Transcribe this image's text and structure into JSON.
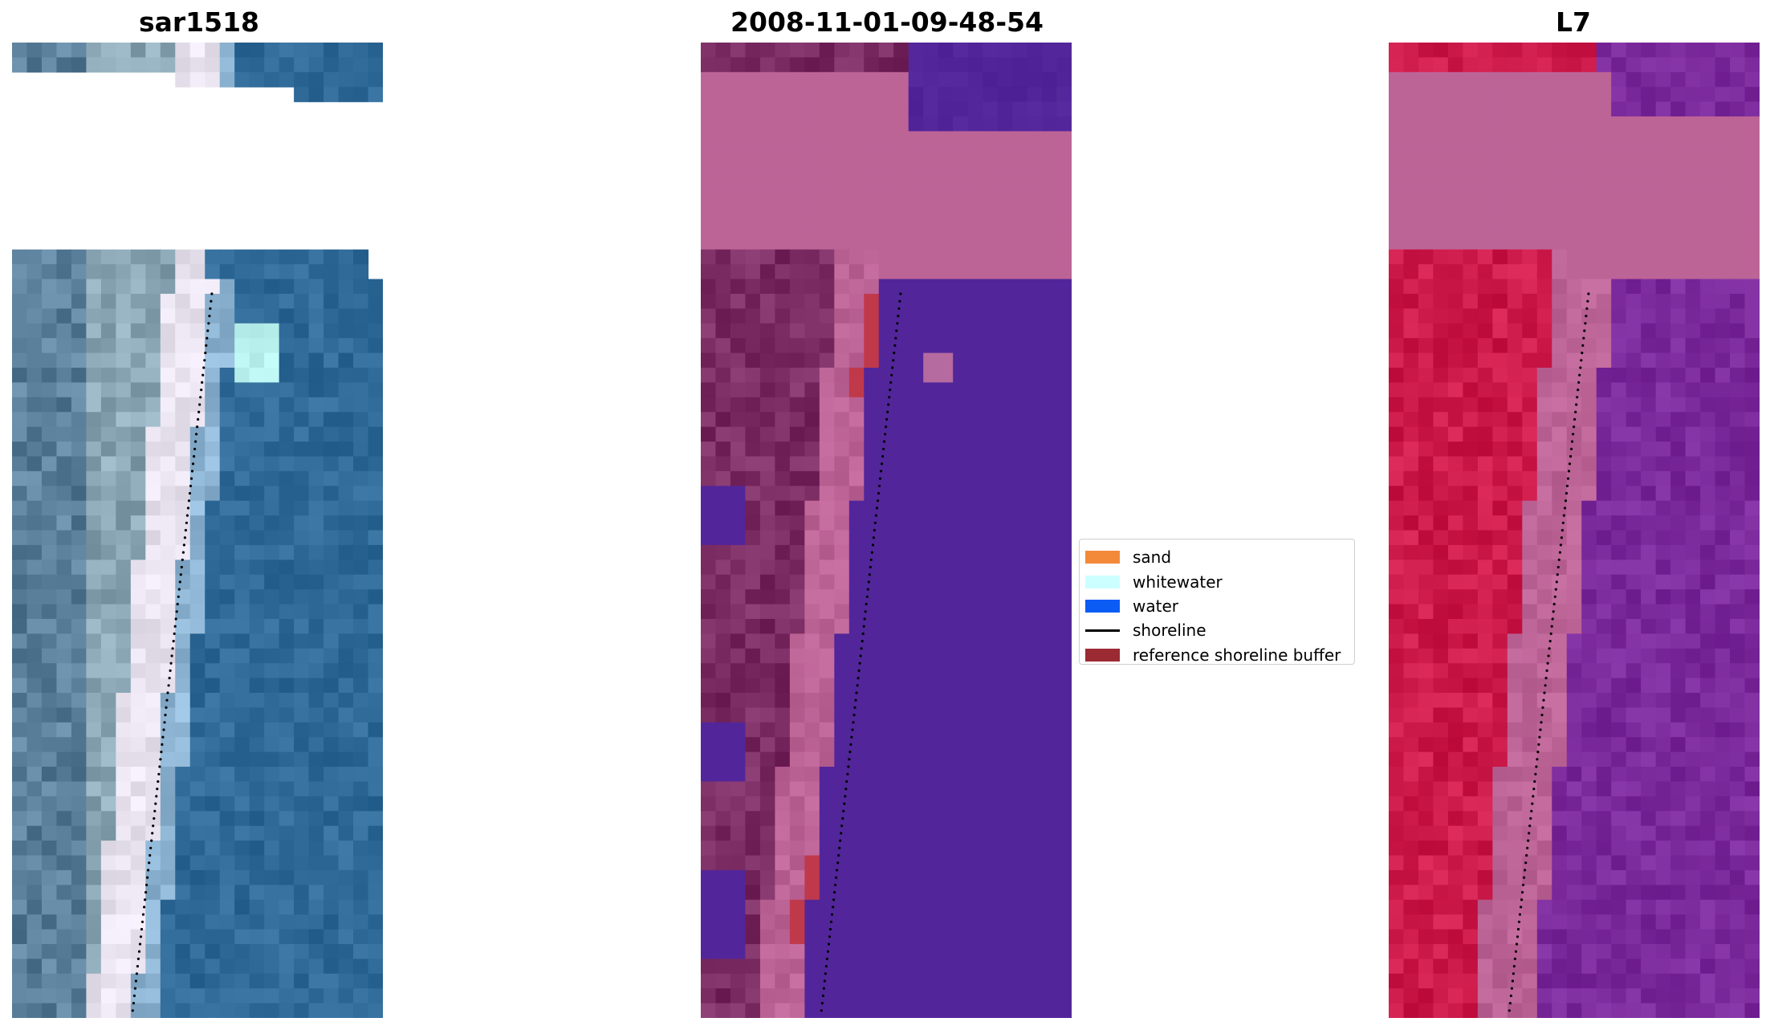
{
  "panels": [
    {
      "title": "sar1518",
      "kind": "rgb"
    },
    {
      "title": "2008-11-01-09-48-54",
      "kind": "classified"
    },
    {
      "title": "L7",
      "kind": "false-color"
    }
  ],
  "legend": {
    "items": [
      {
        "label": "sand",
        "type": "patch",
        "color": "#f28a3a"
      },
      {
        "label": "whitewater",
        "type": "patch",
        "color": "#ccffff"
      },
      {
        "label": "water",
        "type": "patch",
        "color": "#0a5cf5"
      },
      {
        "label": "shoreline",
        "type": "line",
        "color": "#000000"
      },
      {
        "label": "reference shoreline buffer",
        "type": "patch",
        "color": "#9b2a33"
      }
    ]
  },
  "colors": {
    "rgb_water": "#2f6a98",
    "rgb_land": "#5a7f9a",
    "rgb_beach": "#e9e3ef",
    "class_land": "#bd6497",
    "class_dark": "#7b2c63",
    "class_water": "#52269a",
    "class_red": "#c0394a",
    "fc_land": "#cc1a4a",
    "fc_water": "#7b2a9c",
    "fc_buffer": "#bd6497"
  }
}
